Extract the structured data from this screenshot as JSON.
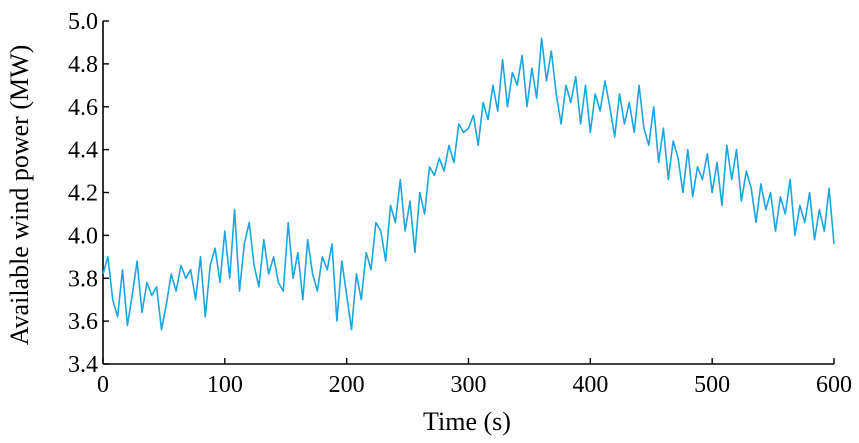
{
  "chart_data": {
    "type": "line",
    "xlabel": "Time (s)",
    "ylabel": "Available wind power (MW)",
    "xlim": [
      0,
      600
    ],
    "ylim": [
      3.4,
      5.0
    ],
    "xticks": [
      0,
      100,
      200,
      300,
      400,
      500,
      600
    ],
    "xtick_labels": [
      "0",
      "100",
      "200",
      "300",
      "400",
      "500",
      "600"
    ],
    "yticks": [
      3.4,
      3.6,
      3.8,
      4.0,
      4.2,
      4.4,
      4.6,
      4.8,
      5.0
    ],
    "ytick_labels": [
      "3.4",
      "3.6",
      "3.8",
      "4.0",
      "4.2",
      "4.4",
      "4.6",
      "4.8",
      "5.0"
    ],
    "grid": false,
    "series": [
      {
        "color": "#1aa6e0",
        "x": [
          0,
          4,
          8,
          12,
          16,
          20,
          24,
          28,
          32,
          36,
          40,
          44,
          48,
          52,
          56,
          60,
          64,
          68,
          72,
          76,
          80,
          84,
          88,
          92,
          96,
          100,
          104,
          108,
          112,
          116,
          120,
          124,
          128,
          132,
          136,
          140,
          144,
          148,
          152,
          156,
          160,
          164,
          168,
          172,
          176,
          180,
          184,
          188,
          192,
          196,
          200,
          204,
          208,
          212,
          216,
          220,
          224,
          228,
          232,
          236,
          240,
          244,
          248,
          252,
          256,
          260,
          264,
          268,
          272,
          276,
          280,
          284,
          288,
          292,
          296,
          300,
          304,
          308,
          312,
          316,
          320,
          324,
          328,
          332,
          336,
          340,
          344,
          348,
          352,
          356,
          360,
          364,
          368,
          372,
          376,
          380,
          384,
          388,
          392,
          396,
          400,
          404,
          408,
          412,
          416,
          420,
          424,
          428,
          432,
          436,
          440,
          444,
          448,
          452,
          456,
          460,
          464,
          468,
          472,
          476,
          480,
          484,
          488,
          492,
          496,
          500,
          504,
          508,
          512,
          516,
          520,
          524,
          528,
          532,
          536,
          540,
          544,
          548,
          552,
          556,
          560,
          564,
          568,
          572,
          576,
          580,
          584,
          588,
          592,
          596,
          600
        ],
        "y": [
          3.82,
          3.9,
          3.7,
          3.62,
          3.84,
          3.58,
          3.72,
          3.88,
          3.64,
          3.78,
          3.72,
          3.76,
          3.56,
          3.68,
          3.82,
          3.74,
          3.86,
          3.8,
          3.84,
          3.7,
          3.9,
          3.62,
          3.86,
          3.94,
          3.78,
          4.02,
          3.8,
          4.12,
          3.74,
          3.96,
          4.06,
          3.86,
          3.76,
          3.98,
          3.82,
          3.9,
          3.78,
          3.74,
          4.06,
          3.8,
          3.92,
          3.7,
          3.98,
          3.82,
          3.74,
          3.9,
          3.84,
          3.96,
          3.6,
          3.88,
          3.72,
          3.56,
          3.82,
          3.7,
          3.92,
          3.84,
          4.06,
          4.02,
          3.88,
          4.14,
          4.06,
          4.26,
          4.02,
          4.16,
          3.92,
          4.2,
          4.1,
          4.32,
          4.28,
          4.36,
          4.3,
          4.42,
          4.34,
          4.52,
          4.48,
          4.5,
          4.56,
          4.42,
          4.62,
          4.54,
          4.7,
          4.58,
          4.82,
          4.6,
          4.76,
          4.7,
          4.84,
          4.6,
          4.78,
          4.64,
          4.92,
          4.72,
          4.86,
          4.66,
          4.52,
          4.7,
          4.62,
          4.74,
          4.52,
          4.7,
          4.48,
          4.66,
          4.58,
          4.72,
          4.6,
          4.46,
          4.66,
          4.52,
          4.62,
          4.48,
          4.7,
          4.5,
          4.42,
          4.6,
          4.34,
          4.5,
          4.26,
          4.44,
          4.36,
          4.2,
          4.4,
          4.18,
          4.32,
          4.26,
          4.38,
          4.2,
          4.34,
          4.14,
          4.42,
          4.26,
          4.4,
          4.16,
          4.3,
          4.22,
          4.06,
          4.24,
          4.12,
          4.2,
          4.02,
          4.18,
          4.1,
          4.26,
          4.0,
          4.14,
          4.06,
          4.2,
          3.98,
          4.12,
          4.02,
          4.22,
          3.96
        ]
      }
    ]
  }
}
